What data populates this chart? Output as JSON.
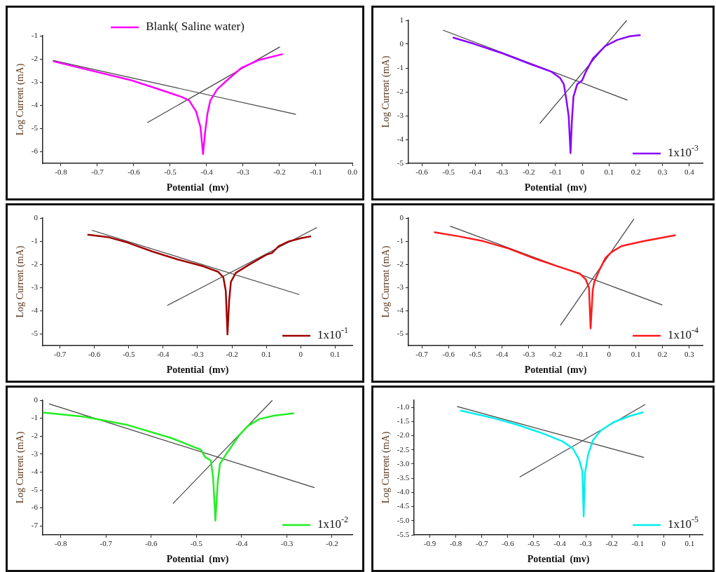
{
  "chart_data": [
    {
      "type": "line",
      "xlabel": "Potential  (mv)",
      "ylabel": "Log Current (mA)",
      "legend": "top",
      "grid": false,
      "xlim": [
        -0.85,
        0
      ],
      "xticks": [
        -0.8,
        -0.7,
        -0.6,
        -0.5,
        -0.4,
        -0.3,
        -0.2,
        -0.1,
        {
          "value": 0,
          "label": "0.0"
        }
      ],
      "ylim": [
        -6.5,
        -1
      ],
      "yticks": [
        -1,
        -2,
        -3,
        -4,
        -5,
        -6
      ],
      "series": [
        {
          "name": "Blank( Saline water)",
          "color": "#ff00ff",
          "x": [
            -0.822,
            -0.607,
            -0.53,
            -0.468,
            -0.448,
            -0.429,
            -0.417,
            -0.41,
            -0.404,
            -0.398,
            -0.39,
            -0.371,
            -0.344,
            -0.305,
            -0.259,
            -0.191
          ],
          "values": [
            -2.1,
            -2.92,
            -3.31,
            -3.64,
            -3.79,
            -4.27,
            -4.94,
            -6.1,
            -5.13,
            -4.37,
            -3.79,
            -3.31,
            -2.92,
            -2.39,
            -2.06,
            -1.79
          ]
        },
        {
          "type": "line",
          "color": "#404040",
          "x": [
            -0.822,
            -0.155
          ],
          "values": [
            -2.06,
            -4.39
          ]
        },
        {
          "type": "line",
          "color": "#404040",
          "x": [
            -0.563,
            -0.199
          ],
          "values": [
            -4.75,
            -1.48
          ]
        }
      ]
    },
    {
      "type": "line",
      "xlabel": "Potential  (mv)",
      "ylabel": "Log Current (mA)",
      "legend": "bottom right",
      "grid": false,
      "xlim": [
        -0.65,
        0.45
      ],
      "xticks": [
        -0.6,
        -0.5,
        -0.4,
        -0.3,
        -0.2,
        -0.1,
        0,
        0.1,
        0.2,
        0.3,
        0.4
      ],
      "ylim": [
        -5,
        1
      ],
      "yticks": [
        1,
        0,
        -1,
        -2,
        -3,
        -4,
        -5
      ],
      "series": [
        {
          "name": "1x10$^{-3}$",
          "color": "#8b00ff",
          "x": [
            -0.484,
            -0.407,
            -0.297,
            -0.188,
            -0.115,
            -0.083,
            -0.069,
            -0.06,
            -0.051,
            -0.044,
            -0.039,
            -0.033,
            -0.019,
            -0.001,
            0.013,
            0.04,
            0.086,
            0.131,
            0.177,
            0.218
          ],
          "values": [
            0.28,
            0.02,
            -0.39,
            -0.86,
            -1.16,
            -1.42,
            -1.68,
            -2.3,
            -3.02,
            -4.57,
            -3.23,
            -2.2,
            -1.68,
            -1.53,
            -1.16,
            -0.6,
            -0.08,
            0.18,
            0.33,
            0.38
          ]
        },
        {
          "type": "line",
          "color": "#404040",
          "x": [
            -0.521,
            0.169
          ],
          "values": [
            0.59,
            -2.35
          ]
        },
        {
          "type": "line",
          "color": "#404040",
          "x": [
            -0.159,
            0.166
          ],
          "values": [
            -3.33,
            1.0
          ]
        }
      ]
    },
    {
      "type": "line",
      "xlabel": "Potential  (mv)",
      "ylabel": "Log Current (mA)",
      "legend": "bottom right",
      "grid": false,
      "xlim": [
        -0.75,
        0.15
      ],
      "xticks": [
        -0.7,
        -0.6,
        -0.5,
        -0.4,
        -0.3,
        -0.2,
        {
          "value": -0.1,
          "label": "0.1"
        },
        0,
        0.1
      ],
      "ylim": [
        -5.5,
        0
      ],
      "yticks": [
        0,
        -1,
        -2,
        -3,
        -4,
        -5
      ],
      "series": [
        {
          "name": "1x10$^{-1}$",
          "color": "#a00000",
          "x": [
            -0.62,
            -0.561,
            -0.503,
            -0.43,
            -0.357,
            -0.284,
            -0.24,
            -0.225,
            -0.218,
            -0.213,
            -0.208,
            -0.203,
            -0.189,
            -0.152,
            -0.101,
            -0.083,
            -0.064,
            -0.035,
            0.001,
            0.03
          ],
          "values": [
            -0.72,
            -0.82,
            -1.06,
            -1.45,
            -1.79,
            -2.08,
            -2.32,
            -2.56,
            -3.14,
            -5.02,
            -3.53,
            -2.75,
            -2.37,
            -2.03,
            -1.59,
            -1.5,
            -1.21,
            -1.01,
            -0.87,
            -0.79
          ]
        },
        {
          "type": "line",
          "color": "#404040",
          "x": [
            -0.607,
            -0.004
          ],
          "values": [
            -0.53,
            -3.3
          ]
        },
        {
          "type": "line",
          "color": "#404040",
          "x": [
            -0.388,
            0.047
          ],
          "values": [
            -3.77,
            -0.41
          ]
        }
      ]
    },
    {
      "type": "line",
      "xlabel": "Potential  (mv)",
      "ylabel": "Log Current (mA)",
      "legend": "bottom right",
      "grid": false,
      "xlim": [
        -0.75,
        0.35
      ],
      "xticks": [
        -0.7,
        -0.6,
        -0.5,
        -0.4,
        -0.3,
        -0.2,
        -0.1,
        0,
        0.1,
        0.2,
        0.3
      ],
      "ylim": [
        -5.5,
        0
      ],
      "yticks": [
        0,
        -1,
        -2,
        -3,
        -4,
        -5
      ],
      "series": [
        {
          "name": "1x10$^{-4}$",
          "color": "#ff1a1a",
          "x": [
            -0.654,
            -0.562,
            -0.47,
            -0.377,
            -0.285,
            -0.193,
            -0.11,
            -0.087,
            -0.075,
            -0.069,
            -0.061,
            -0.055,
            -0.036,
            -0.013,
            0.01,
            0.047,
            0.129,
            0.249
          ],
          "values": [
            -0.61,
            -0.79,
            -1.0,
            -1.31,
            -1.72,
            -2.08,
            -2.39,
            -2.65,
            -3.01,
            -4.76,
            -3.11,
            -2.75,
            -2.24,
            -1.72,
            -1.46,
            -1.21,
            -1.0,
            -0.74
          ]
        },
        {
          "type": "line",
          "color": "#404040",
          "x": [
            -0.594,
            0.199
          ],
          "values": [
            -0.35,
            -3.75
          ]
        },
        {
          "type": "line",
          "color": "#404040",
          "x": [
            -0.182,
            0.093
          ],
          "values": [
            -4.63,
            -0.04
          ]
        }
      ]
    },
    {
      "type": "line",
      "xlabel": "Potential  (mv)",
      "ylabel": "Log Current (mA)",
      "legend": "bottom right",
      "grid": false,
      "xlim": [
        -0.84,
        -0.155
      ],
      "xticks": [
        -0.8,
        -0.7,
        -0.6,
        -0.5,
        -0.4,
        -0.3,
        -0.2
      ],
      "ylim": [
        -7.5,
        0
      ],
      "yticks": [
        0,
        -1,
        -2,
        -3,
        -4,
        -5,
        -6,
        -7
      ],
      "series": [
        {
          "name": "1x10$^{-2}$",
          "color": "#22ee22",
          "x": [
            -0.839,
            -0.748,
            -0.652,
            -0.555,
            -0.49,
            -0.481,
            -0.468,
            -0.463,
            -0.458,
            -0.453,
            -0.448,
            -0.435,
            -0.406,
            -0.387,
            -0.361,
            -0.329,
            -0.284
          ],
          "values": [
            -0.68,
            -0.92,
            -1.38,
            -2.11,
            -2.76,
            -3.16,
            -3.36,
            -4.34,
            -6.71,
            -4.61,
            -3.55,
            -3.03,
            -1.97,
            -1.45,
            -1.05,
            -0.86,
            -0.72
          ]
        },
        {
          "type": "line",
          "color": "#404040",
          "x": [
            -0.826,
            -0.239
          ],
          "values": [
            -0.2,
            -4.87
          ]
        },
        {
          "type": "line",
          "color": "#404040",
          "x": [
            -0.552,
            -0.332
          ],
          "values": [
            -5.76,
            0
          ]
        }
      ]
    },
    {
      "type": "line",
      "xlabel": "Potential  (mv)",
      "ylabel": "Log Current (mA)",
      "legend": "bottom right",
      "grid": false,
      "xlim": [
        -0.96,
        0.15
      ],
      "xticks": [
        -0.9,
        -0.8,
        -0.7,
        -0.6,
        -0.5,
        -0.4,
        -0.3,
        -0.2,
        -0.1,
        0,
        0.1
      ],
      "ylim": [
        -5.5,
        -0.75
      ],
      "yticks": [
        {
          "value": -1,
          "label": "-1.0"
        },
        -1.5,
        {
          "value": -2,
          "label": "-2.0"
        },
        -2.5,
        {
          "value": -3,
          "label": "-3.0"
        },
        -3.5,
        {
          "value": -4,
          "label": "-4.0"
        },
        -4.5,
        {
          "value": -5,
          "label": "-5.0"
        },
        -5.5
      ],
      "series": [
        {
          "name": "1x10$^{-5}$",
          "color": "#00eeee",
          "x": [
            -0.783,
            -0.663,
            -0.565,
            -0.468,
            -0.389,
            -0.35,
            -0.326,
            -0.313,
            -0.308,
            -0.303,
            -0.291,
            -0.272,
            -0.242,
            -0.194,
            -0.135,
            -0.078
          ],
          "values": [
            -1.11,
            -1.36,
            -1.61,
            -1.91,
            -2.2,
            -2.45,
            -2.83,
            -3.25,
            -4.85,
            -3.34,
            -2.67,
            -2.16,
            -1.82,
            -1.53,
            -1.32,
            -1.17
          ]
        },
        {
          "type": "line",
          "color": "#404040",
          "x": [
            -0.795,
            -0.076
          ],
          "values": [
            -0.97,
            -2.77
          ]
        },
        {
          "type": "line",
          "color": "#404040",
          "x": [
            -0.554,
            -0.071
          ],
          "values": [
            -3.46,
            -0.9
          ]
        }
      ]
    }
  ]
}
